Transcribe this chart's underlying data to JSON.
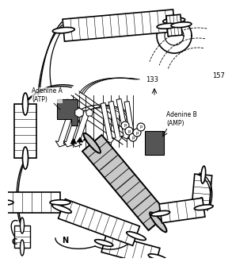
{
  "bg_color": "#ffffff",
  "line_color": "#000000",
  "adenine_color": "#555555",
  "gray_helix": "#c8c8c8",
  "labels": {
    "adenine_a": "Adenine A\n(ATP)",
    "adenine_b": "Adenine B\n(AMP)",
    "C": "C",
    "N": "N",
    "num133": "133",
    "num157": "157"
  }
}
